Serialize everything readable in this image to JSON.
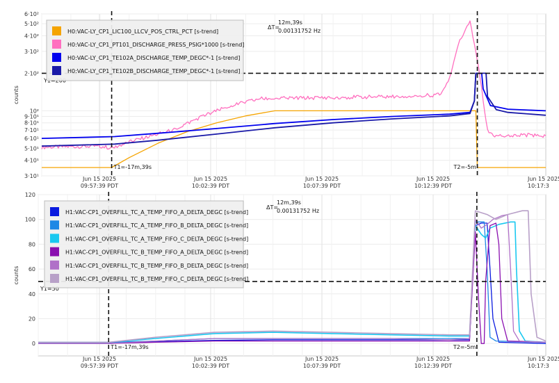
{
  "chart_data": [
    {
      "type": "line",
      "ylabel": "counts",
      "y_scale": "log",
      "ylim": [
        30,
        600
      ],
      "y_tick_labels": [
        {
          "v": 600,
          "label": "6·10²"
        },
        {
          "v": 500,
          "label": "5·10²"
        },
        {
          "v": 400,
          "label": "4·10²"
        },
        {
          "v": 300,
          "label": "3·10²"
        },
        {
          "v": 200,
          "label": "2·10²"
        },
        {
          "v": 100,
          "label": "10²"
        },
        {
          "v": 90,
          "label": "9·10¹"
        },
        {
          "v": 80,
          "label": "8·10¹"
        },
        {
          "v": 70,
          "label": "7·10¹"
        },
        {
          "v": 60,
          "label": "6·10¹"
        },
        {
          "v": 50,
          "label": "5·10¹"
        },
        {
          "v": 40,
          "label": "4·10¹"
        },
        {
          "v": 30,
          "label": "3·10¹"
        }
      ],
      "x_tick_labels": [
        {
          "line1": "Jun 15 2025",
          "line2": "09:57:39 PDT"
        },
        {
          "line1": "Jun 15 2025",
          "line2": "10:02:39 PDT"
        },
        {
          "line1": "Jun 15 2025",
          "line2": "10:07:39 PDT"
        },
        {
          "line1": "Jun 15 2025",
          "line2": "10:12:39 PDT"
        },
        {
          "line1": "Jun 15 2025",
          "line2": "10:17:3"
        }
      ],
      "grid": true,
      "legend_position": "top-left",
      "cursors": {
        "t1_label": "T1=-17m,39s",
        "t2_label": "T2=-5m",
        "y1_label": "Y1=200",
        "y1_value": 200,
        "delta_label": "ΔT=",
        "delta_time": "12m,39s",
        "delta_freq": "0.00131752 Hz"
      },
      "series": [
        {
          "name": "H0:VAC-LY_CP1_LIC100_LLCV_POS_CTRL_PCT [s-trend]",
          "color": "#f5a400",
          "points": [
            [
              -20.0,
              35
            ],
            [
              -17.6,
              35
            ],
            [
              -17.0,
              42
            ],
            [
              -16.0,
              55
            ],
            [
              -15.0,
              68
            ],
            [
              -14.0,
              80
            ],
            [
              -13.0,
              91
            ],
            [
              -12.0,
              100
            ],
            [
              -5.2,
              100
            ],
            [
              -5.1,
              100
            ],
            [
              -5.05,
              35
            ],
            [
              -2.7,
              35
            ]
          ]
        },
        {
          "name": "H0:VAC-LY_CP1_PT101_DISCHARGE_PRESS_PSIG*1000 [s-trend]",
          "color": "#ff6fbf",
          "noise": 0.035,
          "points": [
            [
              -20.0,
              51
            ],
            [
              -18.0,
              52
            ],
            [
              -17.6,
              50
            ],
            [
              -16.8,
              58
            ],
            [
              -15.5,
              70
            ],
            [
              -14.5,
              90
            ],
            [
              -13.5,
              110
            ],
            [
              -12.5,
              125
            ],
            [
              -10.0,
              128
            ],
            [
              -8.0,
              130
            ],
            [
              -7.0,
              132
            ],
            [
              -6.3,
              135
            ],
            [
              -6.0,
              180
            ],
            [
              -5.7,
              350
            ],
            [
              -5.4,
              480
            ],
            [
              -5.3,
              520
            ],
            [
              -5.1,
              300
            ],
            [
              -4.9,
              150
            ],
            [
              -4.7,
              70
            ],
            [
              -4.5,
              63
            ],
            [
              -3.5,
              64
            ],
            [
              -2.7,
              63
            ]
          ]
        },
        {
          "name": "H0:VAC-LY_CP1_TE102A_DISCHARGE_TEMP_DEGC*-1 [s-trend]",
          "color": "#0000ee",
          "width": 1.8,
          "points": [
            [
              -20.0,
              60
            ],
            [
              -17.5,
              62
            ],
            [
              -16.0,
              66
            ],
            [
              -14.0,
              72
            ],
            [
              -12.0,
              79
            ],
            [
              -10.0,
              85
            ],
            [
              -8.0,
              90
            ],
            [
              -6.0,
              94
            ],
            [
              -5.3,
              97
            ],
            [
              -5.15,
              120
            ],
            [
              -5.1,
              200
            ],
            [
              -4.9,
              200
            ],
            [
              -4.85,
              150
            ],
            [
              -4.6,
              110
            ],
            [
              -4.0,
              103
            ],
            [
              -2.7,
              100
            ]
          ]
        },
        {
          "name": "H0:VAC-LY_CP1_TE102B_DISCHARGE_TEMP_DEGC*-1 [s-trend]",
          "color": "#1a1aa8",
          "width": 1.8,
          "points": [
            [
              -20.0,
              52
            ],
            [
              -17.5,
              54
            ],
            [
              -16.0,
              58
            ],
            [
              -14.0,
              65
            ],
            [
              -12.0,
              73
            ],
            [
              -10.0,
              80
            ],
            [
              -8.0,
              86
            ],
            [
              -6.0,
              91
            ],
            [
              -5.3,
              95
            ],
            [
              -5.15,
              120
            ],
            [
              -5.1,
              200
            ],
            [
              -4.75,
              200
            ],
            [
              -4.7,
              130
            ],
            [
              -4.4,
              102
            ],
            [
              -4.0,
              97
            ],
            [
              -2.7,
              92
            ]
          ]
        }
      ]
    },
    {
      "type": "line",
      "ylabel": "counts",
      "y_scale": "linear",
      "ylim": [
        -10,
        120
      ],
      "y_ticks": [
        0,
        20,
        40,
        60,
        80,
        100,
        120
      ],
      "x_tick_labels": [
        {
          "line1": "Jun 15 2025",
          "line2": "09:57:39 PDT"
        },
        {
          "line1": "Jun 15 2025",
          "line2": "10:02:39 PDT"
        },
        {
          "line1": "Jun 15 2025",
          "line2": "10:07:39 PDT"
        },
        {
          "line1": "Jun 15 2025",
          "line2": "10:12:39 PDT"
        },
        {
          "line1": "Jun 15 2025",
          "line2": "10:17:3"
        }
      ],
      "grid": true,
      "legend_position": "top-left",
      "cursors": {
        "t1_label": "T1=-17m,39s",
        "t2_label": "T2=-5m",
        "y1_label": "Y1=50",
        "y1_value": 50,
        "delta_label": "ΔT=",
        "delta_time": "12m,39s",
        "delta_freq": "0.00131752 Hz"
      },
      "series": [
        {
          "name": "H1:VAC-CP1_OVERFILL_TC_A_TEMP_FIFO_A_DELTA_DEGC [s-trend]",
          "color": "#0a1adf",
          "points": [
            [
              -20.0,
              0.5
            ],
            [
              -17.6,
              0.5
            ],
            [
              -16.0,
              1.5
            ],
            [
              -14.0,
              2.5
            ],
            [
              -12.0,
              3
            ],
            [
              -10.0,
              3
            ],
            [
              -8.0,
              3
            ],
            [
              -6.0,
              3
            ],
            [
              -5.3,
              3
            ],
            [
              -5.1,
              95
            ],
            [
              -4.9,
              97
            ],
            [
              -4.7,
              97
            ],
            [
              -4.6,
              60
            ],
            [
              -4.5,
              20
            ],
            [
              -4.3,
              1
            ],
            [
              -2.7,
              0
            ]
          ]
        },
        {
          "name": "H1:VAC-CP1_OVERFILL_TC_A_TEMP_FIFO_B_DELTA_DEGC [s-trend]",
          "color": "#1e88e5",
          "points": [
            [
              -20.0,
              1
            ],
            [
              -17.6,
              1
            ],
            [
              -16.0,
              2
            ],
            [
              -14.0,
              4
            ],
            [
              -12.0,
              4
            ],
            [
              -10.0,
              4
            ],
            [
              -8.0,
              4
            ],
            [
              -6.0,
              4
            ],
            [
              -5.3,
              4
            ],
            [
              -5.1,
              98
            ],
            [
              -4.8,
              98
            ],
            [
              -4.7,
              60
            ],
            [
              -4.6,
              5
            ],
            [
              -4.4,
              2
            ],
            [
              -2.7,
              1
            ]
          ]
        },
        {
          "name": "H1:VAC-CP1_OVERFILL_TC_A_TEMP_FIFO_C_DELTA_DEGC [s-trend]",
          "color": "#1ac8f0",
          "width": 1.6,
          "points": [
            [
              -20.0,
              1
            ],
            [
              -17.6,
              1
            ],
            [
              -16.0,
              4
            ],
            [
              -14.0,
              8
            ],
            [
              -12.0,
              9
            ],
            [
              -10.0,
              8
            ],
            [
              -8.0,
              7
            ],
            [
              -6.0,
              6
            ],
            [
              -5.3,
              6
            ],
            [
              -5.1,
              95
            ],
            [
              -4.9,
              88
            ],
            [
              -4.75,
              85
            ],
            [
              -4.6,
              93
            ],
            [
              -4.3,
              96
            ],
            [
              -3.9,
              98
            ],
            [
              -3.75,
              98
            ],
            [
              -3.7,
              60
            ],
            [
              -3.6,
              10
            ],
            [
              -3.4,
              2
            ],
            [
              -2.7,
              1
            ]
          ]
        },
        {
          "name": "H1:VAC-CP1_OVERFILL_TC_B_TEMP_FIFO_A_DELTA_DEGC [s-trend]",
          "color": "#8a0fb0",
          "points": [
            [
              -20.0,
              0
            ],
            [
              -17.6,
              0
            ],
            [
              -16.0,
              1
            ],
            [
              -14.0,
              2
            ],
            [
              -12.0,
              2
            ],
            [
              -10.0,
              2
            ],
            [
              -8.0,
              2
            ],
            [
              -6.0,
              2
            ],
            [
              -5.3,
              2
            ],
            [
              -5.1,
              90
            ],
            [
              -5.0,
              40
            ],
            [
              -4.9,
              0
            ],
            [
              -4.8,
              0
            ],
            [
              -4.75,
              50
            ],
            [
              -4.6,
              95
            ],
            [
              -4.4,
              97
            ],
            [
              -4.3,
              80
            ],
            [
              -4.2,
              20
            ],
            [
              -4.0,
              2
            ],
            [
              -2.7,
              1
            ]
          ]
        },
        {
          "name": "H1:VAC-CP1_OVERFILL_TC_B_TEMP_FIFO_B_DELTA_DEGC [s-trend]",
          "color": "#b070c8",
          "points": [
            [
              -20.0,
              0
            ],
            [
              -17.6,
              0
            ],
            [
              -16.0,
              2
            ],
            [
              -14.0,
              4
            ],
            [
              -12.0,
              4
            ],
            [
              -10.0,
              4
            ],
            [
              -8.0,
              4
            ],
            [
              -6.0,
              3
            ],
            [
              -5.3,
              4
            ],
            [
              -5.1,
              100
            ],
            [
              -4.9,
              93
            ],
            [
              -4.7,
              96
            ],
            [
              -4.5,
              100
            ],
            [
              -4.2,
              103
            ],
            [
              -4.0,
              104
            ],
            [
              -3.9,
              60
            ],
            [
              -3.8,
              10
            ],
            [
              -3.6,
              2
            ],
            [
              -2.7,
              1
            ]
          ]
        },
        {
          "name": "H1:VAC-CP1_OVERFILL_TC_B_TEMP_FIFO_C_DELTA_DEGC [s-trend]",
          "color": "#b8a0c8",
          "width": 1.6,
          "points": [
            [
              -20.0,
              1
            ],
            [
              -17.6,
              1
            ],
            [
              -16.0,
              5
            ],
            [
              -14.0,
              9
            ],
            [
              -12.0,
              10
            ],
            [
              -10.0,
              9
            ],
            [
              -8.0,
              8
            ],
            [
              -6.0,
              7
            ],
            [
              -5.3,
              7
            ],
            [
              -5.1,
              107
            ],
            [
              -4.7,
              104
            ],
            [
              -4.4,
              100
            ],
            [
              -4.0,
              104
            ],
            [
              -3.5,
              107
            ],
            [
              -3.3,
              107
            ],
            [
              -3.2,
              40
            ],
            [
              -3.0,
              5
            ],
            [
              -2.7,
              2
            ]
          ]
        }
      ]
    }
  ]
}
